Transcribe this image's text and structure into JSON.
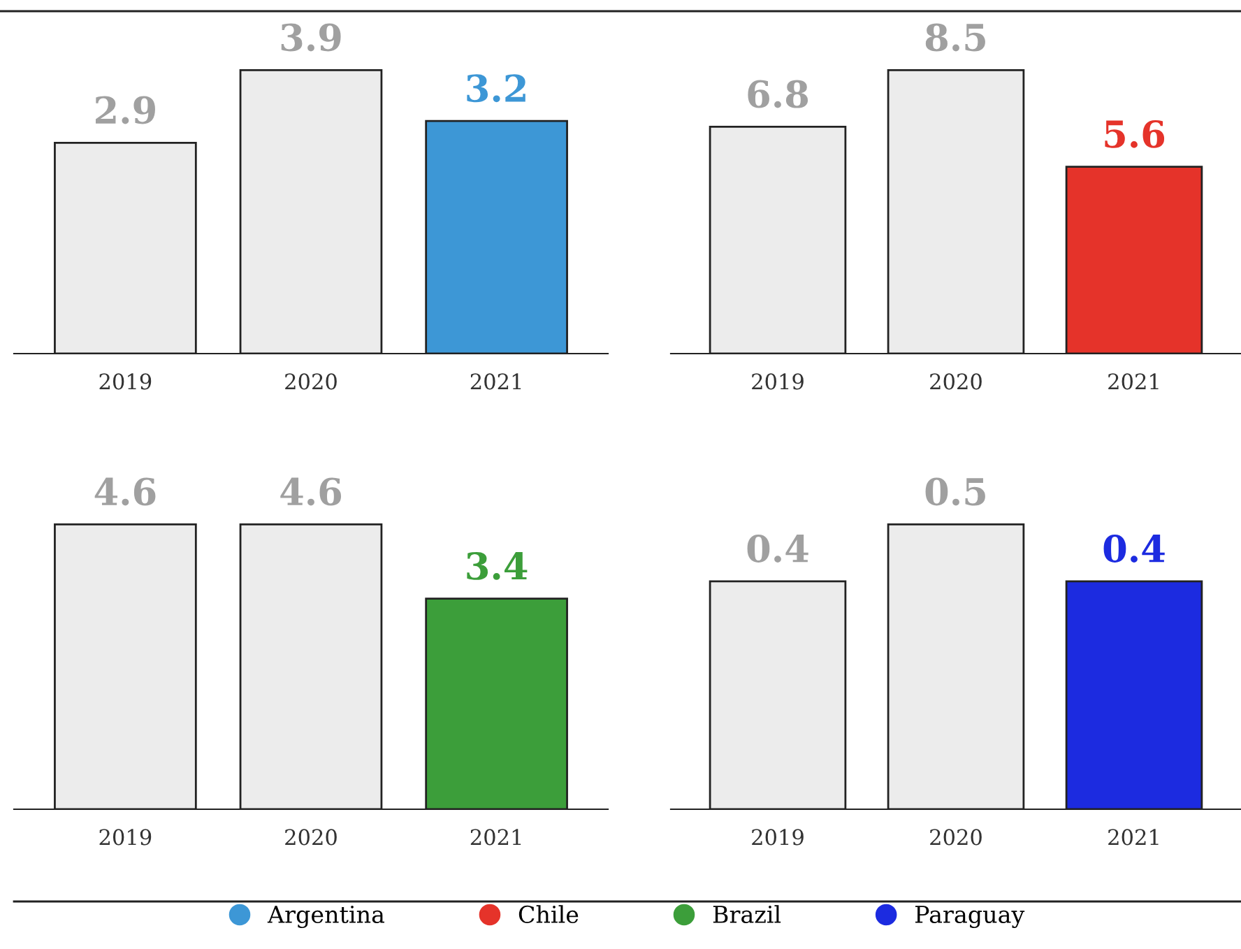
{
  "chart_data": [
    {
      "type": "bar",
      "categories": [
        "2019",
        "2020",
        "2021"
      ],
      "series": [
        {
          "name": "Argentina",
          "color": "#3d97d6",
          "colors": [
            "#ececec",
            "#ececec",
            "#3d97d6"
          ],
          "values": [
            2.9,
            3.9,
            3.2
          ]
        }
      ],
      "data_labels": true,
      "legend": "bottom",
      "tick_labels": "x"
    },
    {
      "type": "bar",
      "categories": [
        "2019",
        "2020",
        "2021"
      ],
      "series": [
        {
          "name": "Chile",
          "color": "#e5332a",
          "colors": [
            "#ececec",
            "#ececec",
            "#e5332a"
          ],
          "values": [
            6.8,
            8.5,
            5.6
          ]
        }
      ],
      "data_labels": true,
      "legend": "bottom",
      "tick_labels": "x"
    },
    {
      "type": "bar",
      "categories": [
        "2019",
        "2020",
        "2021"
      ],
      "series": [
        {
          "name": "Brazil",
          "color": "#3c9e3a",
          "colors": [
            "#ececec",
            "#ececec",
            "#3c9e3a"
          ],
          "values": [
            4.6,
            4.6,
            3.4
          ]
        }
      ],
      "data_labels": true,
      "legend": "bottom",
      "tick_labels": "x"
    },
    {
      "type": "bar",
      "categories": [
        "2019",
        "2020",
        "2021"
      ],
      "series": [
        {
          "name": "Paraguay",
          "color": "#1c2be0",
          "colors": [
            "#ececec",
            "#ececec",
            "#1c2be0"
          ],
          "values": [
            0.4,
            0.5,
            0.4
          ]
        }
      ],
      "data_labels": true,
      "legend": "bottom",
      "tick_labels": "x"
    }
  ]
}
